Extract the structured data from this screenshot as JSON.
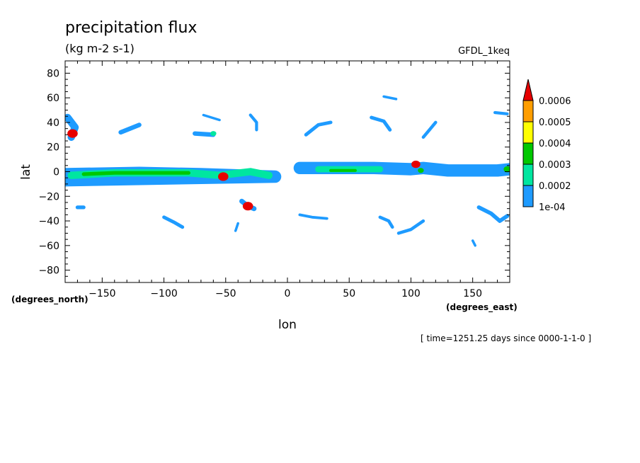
{
  "chart_data": {
    "type": "heatmap",
    "title": "precipitation flux",
    "subtitle": "(kg m-2 s-1)",
    "model_label": "GFDL_1keq",
    "xlabel": "lon",
    "ylabel": "lat",
    "x_unit_label": "(degrees_east)",
    "y_unit_label": "(degrees_north)",
    "time_label": "[ time=1251.25 days since 0000-1-1-0 ]",
    "xlim": [
      -180,
      180
    ],
    "ylim": [
      -90,
      90
    ],
    "x_ticks": [
      -150,
      -100,
      -50,
      0,
      50,
      100,
      150
    ],
    "y_ticks": [
      80,
      60,
      40,
      20,
      0,
      -20,
      -40,
      -60,
      -80
    ],
    "colorbar": {
      "levels": [
        "1e-04",
        "0.0002",
        "0.0003",
        "0.0004",
        "0.0005",
        "0.0006"
      ],
      "colors": [
        "#1e9bff",
        "#00e6a0",
        "#00c800",
        "#ffff00",
        "#ff9e00",
        "#e60000"
      ],
      "extend": "max"
    },
    "features": [
      {
        "lon": [
          -180,
          -120,
          -70,
          -40,
          -10,
          -180
        ],
        "lat": [
          -2,
          -1,
          -2,
          -3,
          -4,
          -7
        ],
        "kind": "band",
        "width": 5,
        "level": 0
      },
      {
        "lon": [
          -175,
          -140,
          -110,
          -80,
          -55,
          -30,
          -15
        ],
        "lat": [
          -3,
          -1,
          -1,
          -1,
          -3,
          0,
          -3
        ],
        "kind": "band",
        "width": 3,
        "level": 1
      },
      {
        "lon": [
          -165,
          -140,
          -100,
          -80
        ],
        "lat": [
          -2,
          -1,
          -1,
          -1
        ],
        "kind": "band",
        "width": 1.5,
        "level": 2
      },
      {
        "lon": [
          10,
          40,
          70,
          100,
          110,
          130,
          170,
          180
        ],
        "lat": [
          3,
          3,
          3,
          2,
          3,
          1,
          1,
          2
        ],
        "kind": "band",
        "width": 5,
        "level": 0
      },
      {
        "lon": [
          25,
          50,
          75
        ],
        "lat": [
          2,
          2,
          2
        ],
        "kind": "band",
        "width": 2.5,
        "level": 1
      },
      {
        "lon": [
          35,
          55
        ],
        "lat": [
          1,
          1
        ],
        "kind": "band",
        "width": 1.2,
        "level": 2
      },
      {
        "lon": [
          -178,
          -172,
          -175
        ],
        "lat": [
          44,
          36,
          28
        ],
        "kind": "band",
        "width": 3,
        "level": 0
      },
      {
        "lon": [
          -135,
          -120
        ],
        "lat": [
          32,
          38
        ],
        "kind": "band",
        "width": 1.8,
        "level": 0
      },
      {
        "lon": [
          -75,
          -60
        ],
        "lat": [
          31,
          30
        ],
        "kind": "band",
        "width": 1.8,
        "level": 0
      },
      {
        "lon": [
          -68,
          -55
        ],
        "lat": [
          46,
          42
        ],
        "kind": "band",
        "width": 1.0,
        "level": 0
      },
      {
        "lon": [
          -30,
          -25,
          -25
        ],
        "lat": [
          46,
          40,
          34
        ],
        "kind": "band",
        "width": 1.2,
        "level": 0
      },
      {
        "lon": [
          15,
          25,
          35
        ],
        "lat": [
          30,
          38,
          40
        ],
        "kind": "band",
        "width": 1.4,
        "level": 0
      },
      {
        "lon": [
          68,
          78,
          83
        ],
        "lat": [
          44,
          41,
          34
        ],
        "kind": "band",
        "width": 1.4,
        "level": 0
      },
      {
        "lon": [
          110,
          115,
          120
        ],
        "lat": [
          28,
          34,
          40
        ],
        "kind": "band",
        "width": 1.3,
        "level": 0
      },
      {
        "lon": [
          168,
          178
        ],
        "lat": [
          48,
          47
        ],
        "kind": "band",
        "width": 1.2,
        "level": 0
      },
      {
        "lon": [
          78,
          88
        ],
        "lat": [
          61,
          59
        ],
        "kind": "band",
        "width": 1.0,
        "level": 0
      },
      {
        "lon": [
          -170,
          -165
        ],
        "lat": [
          -29,
          -29
        ],
        "kind": "band",
        "width": 1.5,
        "level": 0
      },
      {
        "lon": [
          -100,
          -92,
          -85
        ],
        "lat": [
          -37,
          -41,
          -45
        ],
        "kind": "band",
        "width": 1.4,
        "level": 0
      },
      {
        "lon": [
          -37,
          -32,
          -27
        ],
        "lat": [
          -24,
          -28,
          -30
        ],
        "kind": "band",
        "width": 2.0,
        "level": 0
      },
      {
        "lon": [
          -40,
          -42
        ],
        "lat": [
          -42,
          -48
        ],
        "kind": "band",
        "width": 1.0,
        "level": 0
      },
      {
        "lon": [
          10,
          20,
          32
        ],
        "lat": [
          -35,
          -37,
          -38
        ],
        "kind": "band",
        "width": 1.1,
        "level": 0
      },
      {
        "lon": [
          75,
          82,
          85
        ],
        "lat": [
          -37,
          -40,
          -45
        ],
        "kind": "band",
        "width": 1.3,
        "level": 0
      },
      {
        "lon": [
          90,
          100,
          110
        ],
        "lat": [
          -50,
          -47,
          -40
        ],
        "kind": "band",
        "width": 1.3,
        "level": 0
      },
      {
        "lon": [
          155,
          165,
          172,
          178
        ],
        "lat": [
          -29,
          -34,
          -40,
          -36
        ],
        "kind": "band",
        "width": 1.6,
        "level": 0
      },
      {
        "lon": [
          150,
          152
        ],
        "lat": [
          -56,
          -60
        ],
        "kind": "band",
        "width": 1.0,
        "level": 0
      },
      {
        "lon": [
          -174
        ],
        "lat": [
          31
        ],
        "kind": "spot",
        "size": 3.5,
        "level": 5
      },
      {
        "lon": [
          -52
        ],
        "lat": [
          -4
        ],
        "kind": "spot",
        "size": 3.5,
        "level": 5
      },
      {
        "lon": [
          -32
        ],
        "lat": [
          -28
        ],
        "kind": "spot",
        "size": 3.5,
        "level": 5
      },
      {
        "lon": [
          104
        ],
        "lat": [
          6
        ],
        "kind": "spot",
        "size": 3.0,
        "level": 5
      },
      {
        "lon": [
          108
        ],
        "lat": [
          1
        ],
        "kind": "spot",
        "size": 2.0,
        "level": 2
      },
      {
        "lon": [
          -60
        ],
        "lat": [
          31
        ],
        "kind": "spot",
        "size": 2.0,
        "level": 1
      },
      {
        "lon": [
          178
        ],
        "lat": [
          2
        ],
        "kind": "spot",
        "size": 2.5,
        "level": 2
      }
    ]
  }
}
